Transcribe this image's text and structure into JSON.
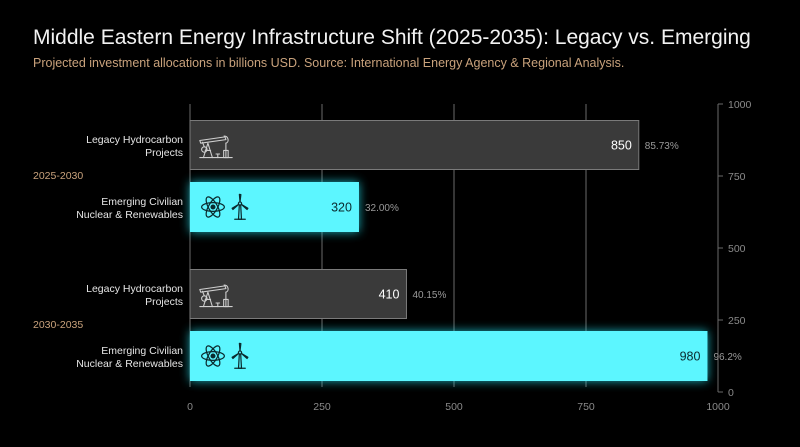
{
  "title": "Middle Eastern Energy Infrastructure Shift (2025-2035): Legacy vs. Emerging",
  "subtitle": "Projected investment allocations in billions USD. Source: International Energy Agency & Regional Analysis.",
  "colors": {
    "background": "#000000",
    "legacy_fill": "#3a3a3a",
    "legacy_stroke": "#7a7a7a",
    "emerging_fill": "#5cf6ff",
    "emerging_glow": "#23e4f2",
    "group_label": "#c9a27c"
  },
  "chart_data": {
    "type": "bar",
    "orientation": "horizontal",
    "groups": [
      "2025-2030",
      "2030-2035"
    ],
    "bars": [
      {
        "group": "2025-2030",
        "category": [
          "Legacy Hydrocarbon",
          "Projects"
        ],
        "value": 850,
        "value_label": "850",
        "pct_label": "85.73%",
        "series": "legacy",
        "icon": "oil-pumpjack-icon"
      },
      {
        "group": "2025-2030",
        "category": [
          "Emerging Civilian",
          "Nuclear & Renewables"
        ],
        "value": 320,
        "value_label": "320",
        "pct_label": "32.00%",
        "series": "emerging",
        "icon": "atom-and-wind-turbine-icon"
      },
      {
        "group": "2030-2035",
        "category": [
          "Legacy Hydrocarbon",
          "Projects"
        ],
        "value": 410,
        "value_label": "410",
        "pct_label": "40.15%",
        "series": "legacy",
        "icon": "oil-pumpjack-icon"
      },
      {
        "group": "2030-2035",
        "category": [
          "Emerging Civilian",
          "Nuclear & Renewables"
        ],
        "value": 980,
        "value_label": "980",
        "pct_label": "96.2%",
        "series": "emerging",
        "icon": "atom-and-wind-turbine-icon"
      }
    ],
    "xlim": [
      0,
      1000
    ],
    "xticks": [
      0,
      250,
      500,
      750,
      1000
    ],
    "right_axis_ticks": [
      1000,
      750,
      500,
      250,
      0
    ],
    "grid": true
  }
}
